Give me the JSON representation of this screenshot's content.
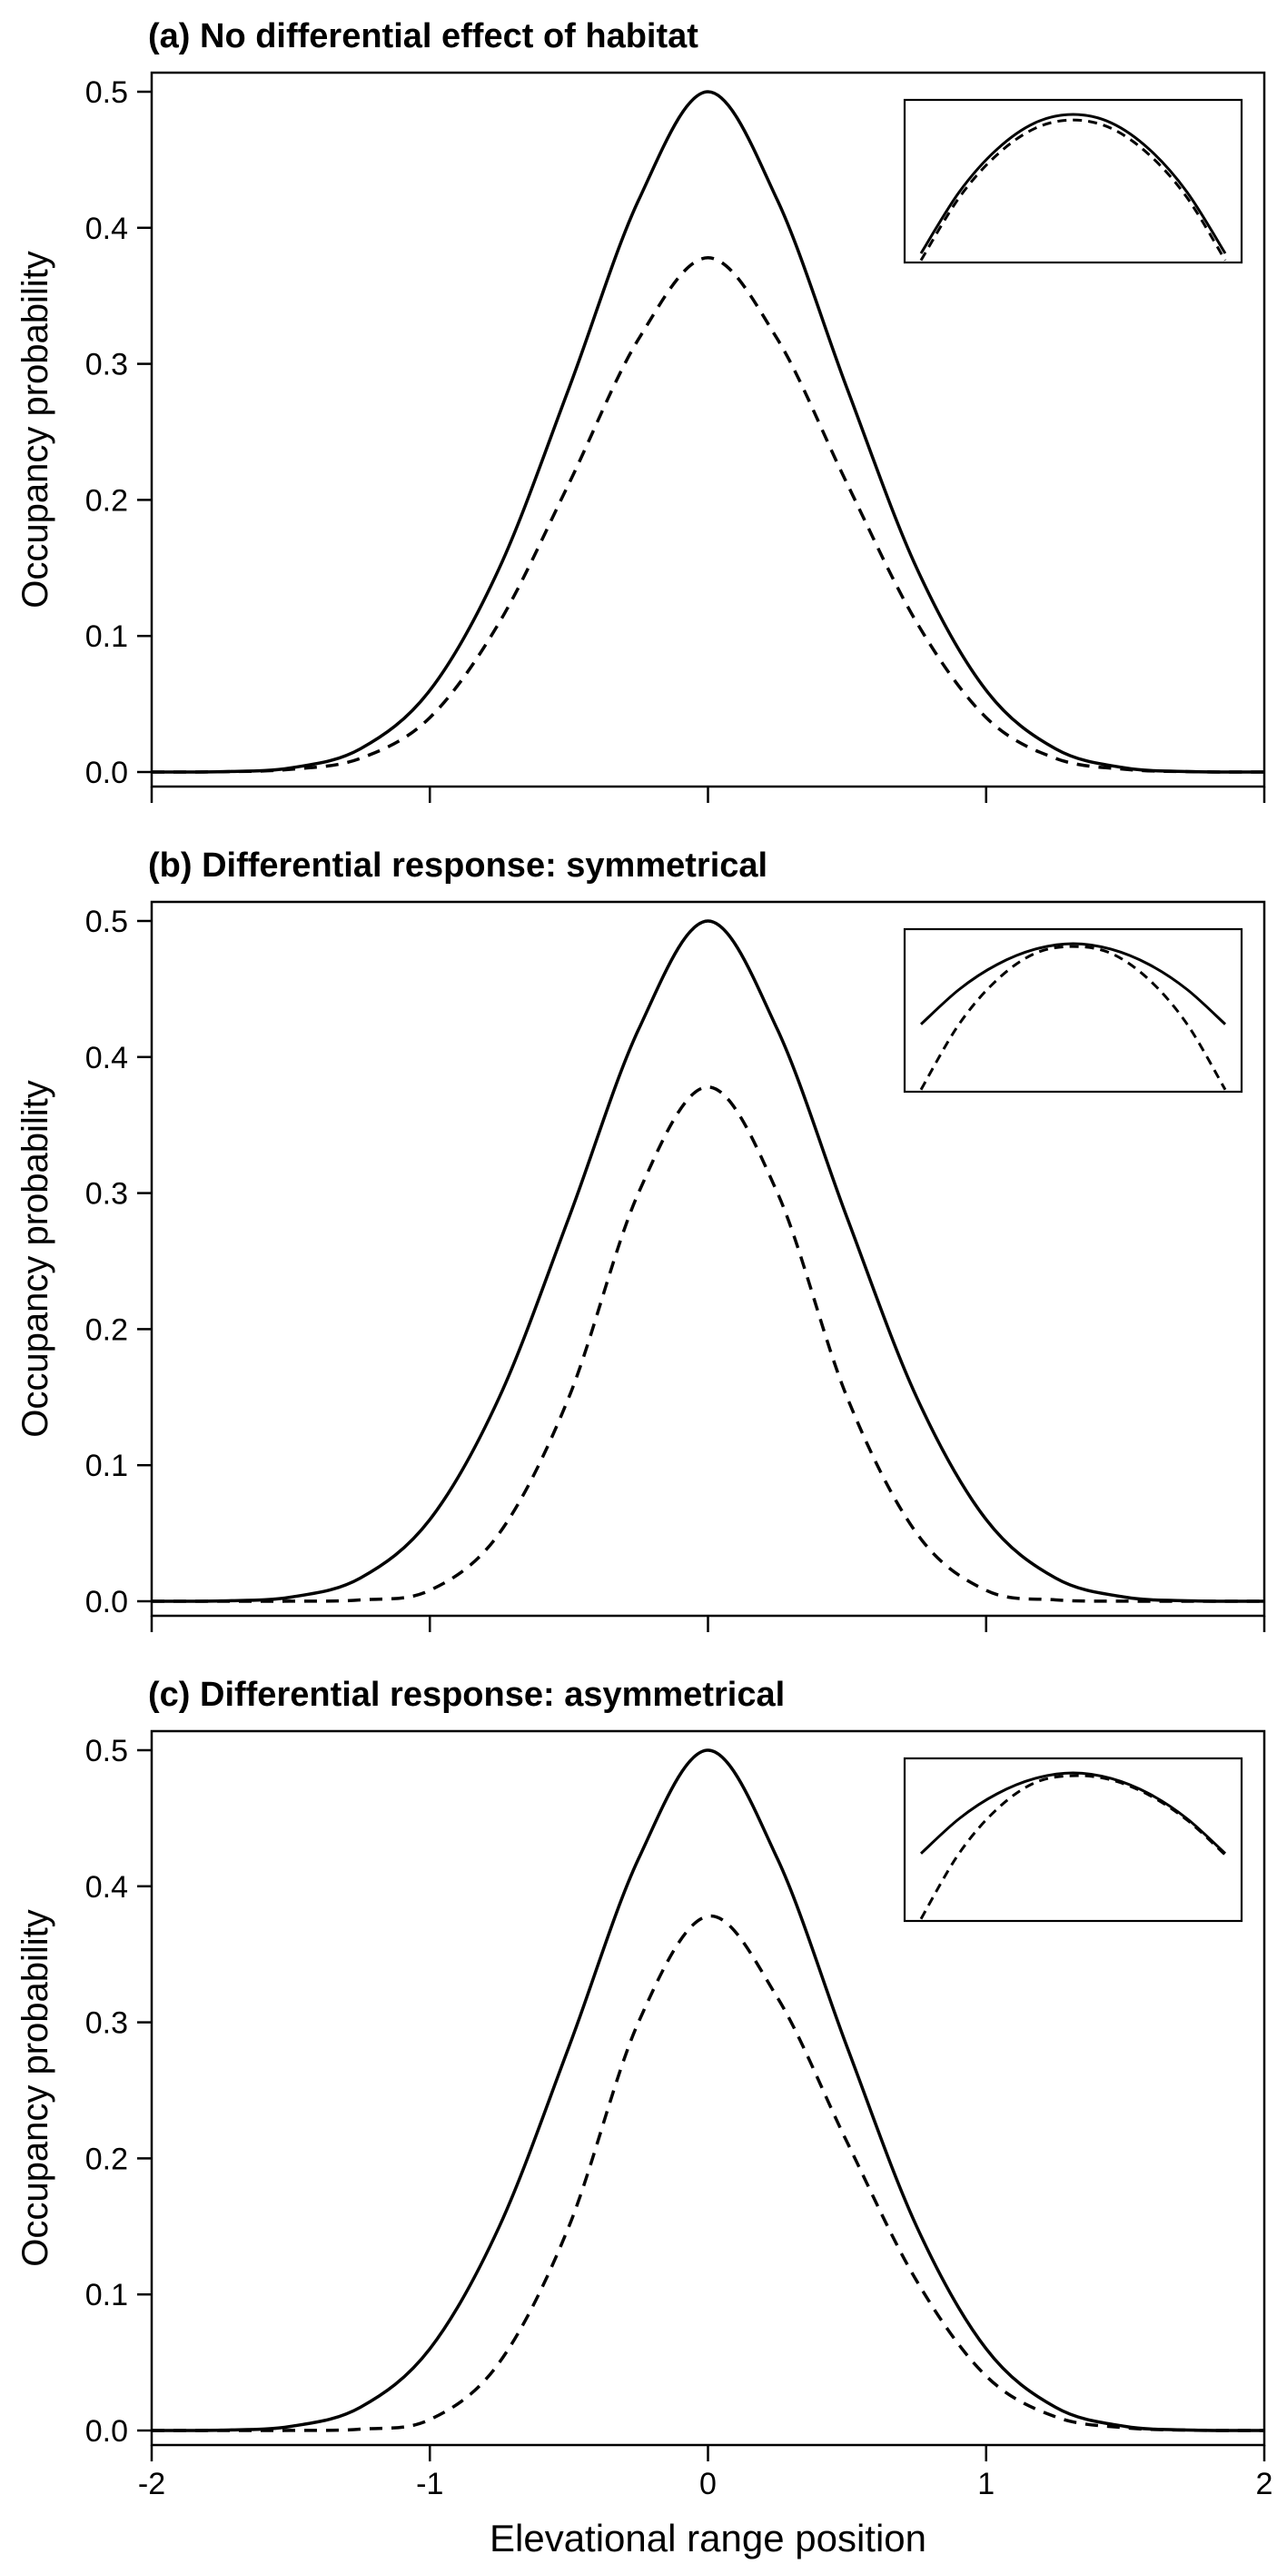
{
  "chart_data": [
    {
      "type": "line",
      "title": "(a) No differential effect of habitat",
      "xlabel": "",
      "ylabel": "Occupancy probability",
      "xlim": [
        -2,
        2
      ],
      "ylim": [
        0,
        0.5
      ],
      "xticks": [
        -2,
        -1,
        0,
        1,
        2
      ],
      "xtick_labels_shown": false,
      "yticks": [
        "0.0",
        "0.1",
        "0.2",
        "0.3",
        "0.4",
        "0.5"
      ],
      "series": [
        {
          "style": "solid",
          "x": [
            -2,
            -1.75,
            -1.5,
            -1.25,
            -1,
            -0.75,
            -0.5,
            -0.25,
            0,
            0.25,
            0.5,
            0.75,
            1,
            1.25,
            1.5,
            1.75,
            2
          ],
          "y": [
            0.0,
            0.0003,
            0.003,
            0.017,
            0.06,
            0.15,
            0.282,
            0.42,
            0.5,
            0.42,
            0.282,
            0.15,
            0.06,
            0.017,
            0.003,
            0.0003,
            0.0
          ]
        },
        {
          "style": "dashed",
          "x": [
            -2,
            -1.75,
            -1.5,
            -1.25,
            -1,
            -0.75,
            -0.5,
            -0.25,
            0,
            0.25,
            0.5,
            0.75,
            1,
            1.25,
            1.5,
            1.75,
            2
          ],
          "y": [
            0.0,
            0.0002,
            0.002,
            0.01,
            0.04,
            0.11,
            0.212,
            0.318,
            0.378,
            0.318,
            0.212,
            0.11,
            0.04,
            0.01,
            0.002,
            0.0002,
            0.0
          ]
        }
      ],
      "inset": {
        "series": [
          {
            "style": "solid",
            "x": [
              -1,
              -0.75,
              -0.5,
              -0.25,
              0,
              0.25,
              0.5,
              0.75,
              1
            ],
            "y": [
              0.0,
              0.44,
              0.75,
              0.94,
              1.0,
              0.94,
              0.75,
              0.44,
              0.0
            ]
          },
          {
            "style": "dashed",
            "x": [
              -1,
              -0.75,
              -0.5,
              -0.25,
              0,
              0.25,
              0.5,
              0.75,
              1
            ],
            "y": [
              -0.05,
              0.4,
              0.71,
              0.9,
              0.96,
              0.9,
              0.71,
              0.4,
              -0.05
            ]
          }
        ]
      }
    },
    {
      "type": "line",
      "title": "(b) Differential response: symmetrical",
      "xlabel": "",
      "ylabel": "Occupancy probability",
      "xlim": [
        -2,
        2
      ],
      "ylim": [
        0,
        0.5
      ],
      "xticks": [
        -2,
        -1,
        0,
        1,
        2
      ],
      "xtick_labels_shown": false,
      "yticks": [
        "0.0",
        "0.1",
        "0.2",
        "0.3",
        "0.4",
        "0.5"
      ],
      "series": [
        {
          "style": "solid",
          "x": [
            -2,
            -1.75,
            -1.5,
            -1.25,
            -1,
            -0.75,
            -0.5,
            -0.25,
            0,
            0.25,
            0.5,
            0.75,
            1,
            1.25,
            1.5,
            1.75,
            2
          ],
          "y": [
            0.0,
            0.0003,
            0.003,
            0.017,
            0.06,
            0.15,
            0.282,
            0.42,
            0.5,
            0.42,
            0.282,
            0.15,
            0.06,
            0.017,
            0.003,
            0.0003,
            0.0
          ]
        },
        {
          "style": "dashed",
          "x": [
            -2,
            -1.75,
            -1.5,
            -1.25,
            -1,
            -0.75,
            -0.5,
            -0.25,
            0,
            0.25,
            0.5,
            0.75,
            1,
            1.25,
            1.5,
            1.75,
            2
          ],
          "y": [
            0.0,
            0.0,
            0.0001,
            0.001,
            0.008,
            0.05,
            0.15,
            0.3,
            0.378,
            0.3,
            0.15,
            0.05,
            0.008,
            0.001,
            0.0001,
            0.0,
            0.0
          ]
        }
      ],
      "inset": {
        "series": [
          {
            "style": "solid",
            "x": [
              -1,
              -0.75,
              -0.5,
              -0.25,
              0,
              0.25,
              0.5,
              0.75,
              1
            ],
            "y": [
              0.42,
              0.67,
              0.85,
              0.96,
              1.0,
              0.96,
              0.85,
              0.67,
              0.42
            ]
          },
          {
            "style": "dashed",
            "x": [
              -1,
              -0.75,
              -0.5,
              -0.25,
              0,
              0.25,
              0.5,
              0.75,
              1
            ],
            "y": [
              -0.05,
              0.42,
              0.74,
              0.93,
              0.98,
              0.93,
              0.74,
              0.42,
              -0.05
            ]
          }
        ]
      }
    },
    {
      "type": "line",
      "title": "(c) Differential response: asymmetrical",
      "xlabel": "Elevational range position",
      "ylabel": "Occupancy probability",
      "xlim": [
        -2,
        2
      ],
      "ylim": [
        0,
        0.5
      ],
      "xticks": [
        -2,
        -1,
        0,
        1,
        2
      ],
      "xtick_labels_shown": true,
      "xtick_labels": [
        "-2",
        "-1",
        "0",
        "1",
        "2"
      ],
      "yticks": [
        "0.0",
        "0.1",
        "0.2",
        "0.3",
        "0.4",
        "0.5"
      ],
      "series": [
        {
          "style": "solid",
          "x": [
            -2,
            -1.75,
            -1.5,
            -1.25,
            -1,
            -0.75,
            -0.5,
            -0.25,
            0,
            0.25,
            0.5,
            0.75,
            1,
            1.25,
            1.5,
            1.75,
            2
          ],
          "y": [
            0.0,
            0.0003,
            0.003,
            0.017,
            0.06,
            0.15,
            0.282,
            0.42,
            0.5,
            0.42,
            0.282,
            0.15,
            0.06,
            0.017,
            0.003,
            0.0003,
            0.0
          ]
        },
        {
          "style": "dashed",
          "x": [
            -2,
            -1.75,
            -1.5,
            -1.25,
            -1,
            -0.75,
            -0.5,
            -0.25,
            0,
            0.25,
            0.5,
            0.75,
            1,
            1.25,
            1.5,
            1.75,
            2
          ],
          "y": [
            0.0,
            0.0,
            0.0001,
            0.001,
            0.008,
            0.05,
            0.15,
            0.3,
            0.378,
            0.318,
            0.212,
            0.11,
            0.04,
            0.01,
            0.002,
            0.0002,
            0.0
          ]
        }
      ],
      "inset": {
        "series": [
          {
            "style": "solid",
            "x": [
              -1,
              -0.75,
              -0.5,
              -0.25,
              0,
              0.25,
              0.5,
              0.75,
              1
            ],
            "y": [
              0.42,
              0.67,
              0.85,
              0.96,
              1.0,
              0.96,
              0.85,
              0.67,
              0.42
            ]
          },
          {
            "style": "dashed",
            "x": [
              -1,
              -0.75,
              -0.5,
              -0.25,
              0,
              0.25,
              0.5,
              0.75,
              1
            ],
            "y": [
              -0.05,
              0.42,
              0.74,
              0.93,
              0.98,
              0.95,
              0.84,
              0.66,
              0.41
            ]
          }
        ]
      }
    }
  ]
}
